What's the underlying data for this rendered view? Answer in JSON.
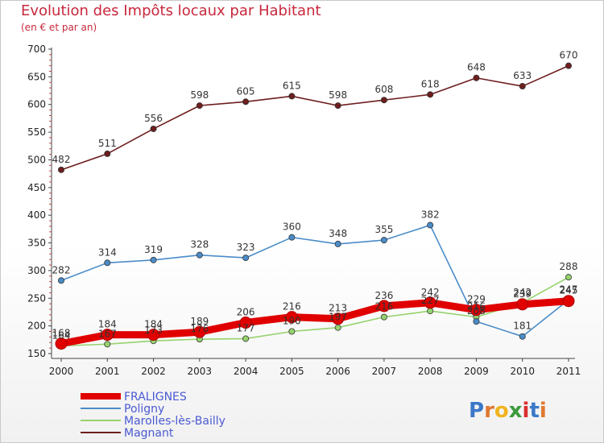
{
  "title": "Evolution des Impôts locaux par Habitant",
  "subtitle": "(en € et par an)",
  "logo_text": "Proxiti",
  "chart_data": {
    "type": "line",
    "title": "Evolution des Impôts locaux par Habitant",
    "subtitle": "(en € et par an)",
    "xlabel": "",
    "ylabel": "",
    "x": [
      "2000",
      "2001",
      "2002",
      "2003",
      "2004",
      "2005",
      "2006",
      "2007",
      "2008",
      "2009",
      "2010",
      "2011"
    ],
    "ylim": [
      150,
      700
    ],
    "yticks": [
      150,
      200,
      250,
      300,
      350,
      400,
      450,
      500,
      550,
      600,
      650,
      700
    ],
    "grid": false,
    "legend_position": "bottom-left",
    "series": [
      {
        "name": "FRALIGNES",
        "color": "#e00000",
        "values": [
          168,
          184,
          184,
          189,
          206,
          216,
          213,
          236,
          242,
          229,
          239,
          245
        ]
      },
      {
        "name": "Poligny",
        "color": "#4a8cc8",
        "values": [
          282,
          314,
          319,
          328,
          323,
          360,
          348,
          355,
          382,
          208,
          181,
          247
        ]
      },
      {
        "name": "Marolles-lès-Bailly",
        "color": "#96d26e",
        "values": [
          164,
          167,
          173,
          176,
          177,
          190,
          197,
          216,
          227,
          216,
          242,
          288
        ]
      },
      {
        "name": "Magnant",
        "color": "#6e1e1e",
        "values": [
          482,
          511,
          556,
          598,
          605,
          615,
          598,
          608,
          618,
          648,
          633,
          670
        ]
      }
    ]
  }
}
